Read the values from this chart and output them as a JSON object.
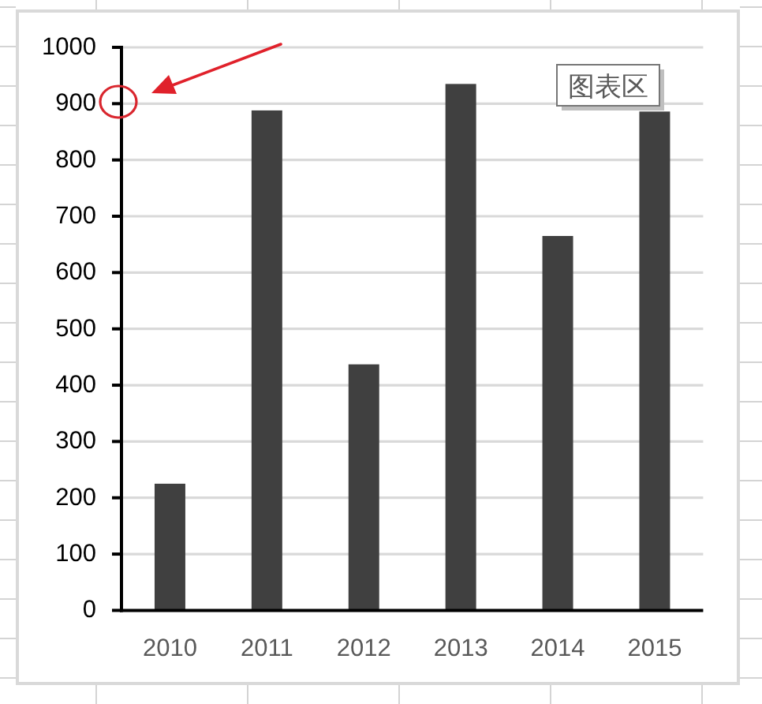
{
  "chart_data": {
    "type": "bar",
    "categories": [
      "2010",
      "2011",
      "2012",
      "2013",
      "2014",
      "2015"
    ],
    "values": [
      225,
      888,
      437,
      935,
      665,
      886
    ],
    "color": "#404040",
    "ylim": [
      0,
      1000
    ],
    "yticks": [
      0,
      100,
      200,
      300,
      400,
      500,
      600,
      700,
      800,
      900,
      1000
    ],
    "grid": "y",
    "annotations": [
      "图表区"
    ]
  }
}
